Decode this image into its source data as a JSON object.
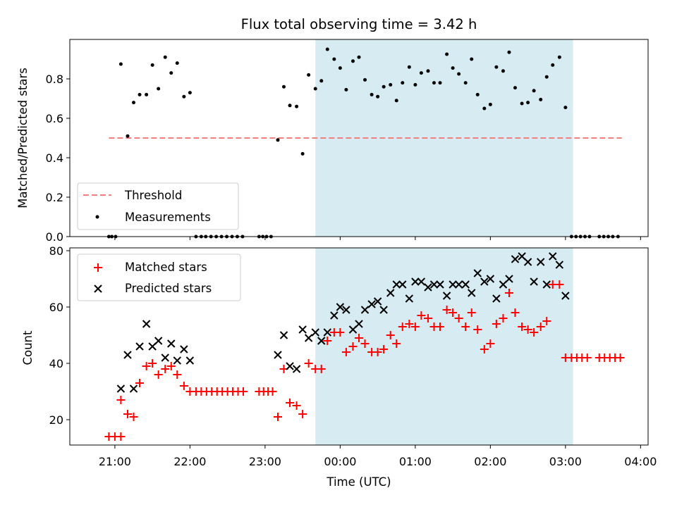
{
  "chart_data": {
    "type": "scatter",
    "title": "Flux total observing time = 3.42 h",
    "xlabel": "Time (UTC)",
    "x_unit": "hours after 00:00 UTC (negative = previous day)",
    "xlim": [
      -3.6,
      4.1
    ],
    "x_ticks": [
      {
        "value": -3,
        "label": "21:00"
      },
      {
        "value": -2,
        "label": "22:00"
      },
      {
        "value": -1,
        "label": "23:00"
      },
      {
        "value": 0,
        "label": "00:00"
      },
      {
        "value": 1,
        "label": "01:00"
      },
      {
        "value": 2,
        "label": "02:00"
      },
      {
        "value": 3,
        "label": "03:00"
      },
      {
        "value": 4,
        "label": "04:00"
      }
    ],
    "observing_window": {
      "start": -0.33,
      "end": 3.1,
      "color": "#add8e6"
    },
    "colors": {
      "threshold": "#f08080",
      "measurements": "#000000",
      "matched": "#ff0000",
      "predicted": "#000000",
      "window": "#add8e6"
    },
    "panels": [
      {
        "ylabel": "Matched/Predicted stars",
        "ylim": [
          0,
          1.0
        ],
        "yticks": [
          0.0,
          0.2,
          0.4,
          0.6,
          0.8
        ],
        "threshold": {
          "y": 0.5,
          "x_range": [
            -3.08,
            3.75
          ]
        },
        "legend": {
          "position": "lower left",
          "threshold_label": "Threshold",
          "measurements_label": "Measurements"
        },
        "measurements": [
          [
            -3.08,
            0
          ],
          [
            -3.04,
            0
          ],
          [
            -2.99,
            0
          ],
          [
            -2.92,
            0.875
          ],
          [
            -2.83,
            0.51
          ],
          [
            -2.75,
            0.68
          ],
          [
            -2.67,
            0.72
          ],
          [
            -2.58,
            0.72
          ],
          [
            -2.5,
            0.87
          ],
          [
            -2.42,
            0.75
          ],
          [
            -2.33,
            0.91
          ],
          [
            -2.25,
            0.83
          ],
          [
            -2.17,
            0.88
          ],
          [
            -2.08,
            0.71
          ],
          [
            -2.0,
            0.73
          ],
          [
            -1.92,
            0
          ],
          [
            -1.85,
            0
          ],
          [
            -1.79,
            0
          ],
          [
            -1.72,
            0
          ],
          [
            -1.65,
            0
          ],
          [
            -1.58,
            0
          ],
          [
            -1.51,
            0
          ],
          [
            -1.44,
            0
          ],
          [
            -1.37,
            0
          ],
          [
            -1.3,
            0
          ],
          [
            -1.08,
            0
          ],
          [
            -1.03,
            0
          ],
          [
            -0.98,
            0
          ],
          [
            -0.92,
            0
          ],
          [
            -0.83,
            0.49
          ],
          [
            -0.75,
            0.76
          ],
          [
            -0.67,
            0.665
          ],
          [
            -0.58,
            0.66
          ],
          [
            -0.5,
            0.42
          ],
          [
            -0.42,
            0.82
          ],
          [
            -0.33,
            0.75
          ],
          [
            -0.25,
            0.79
          ],
          [
            -0.17,
            0.95
          ],
          [
            -0.08,
            0.9
          ],
          [
            0.0,
            0.855
          ],
          [
            0.08,
            0.745
          ],
          [
            0.17,
            0.89
          ],
          [
            0.25,
            0.91
          ],
          [
            0.33,
            0.795
          ],
          [
            0.42,
            0.72
          ],
          [
            0.5,
            0.71
          ],
          [
            0.58,
            0.76
          ],
          [
            0.67,
            0.77
          ],
          [
            0.75,
            0.69
          ],
          [
            0.83,
            0.78
          ],
          [
            0.92,
            0.86
          ],
          [
            1.0,
            0.77
          ],
          [
            1.08,
            0.83
          ],
          [
            1.17,
            0.84
          ],
          [
            1.25,
            0.78
          ],
          [
            1.33,
            0.78
          ],
          [
            1.42,
            0.925
          ],
          [
            1.5,
            0.855
          ],
          [
            1.58,
            0.825
          ],
          [
            1.67,
            0.78
          ],
          [
            1.75,
            0.9
          ],
          [
            1.83,
            0.72
          ],
          [
            1.92,
            0.65
          ],
          [
            2.0,
            0.67
          ],
          [
            2.08,
            0.86
          ],
          [
            2.17,
            0.84
          ],
          [
            2.25,
            0.935
          ],
          [
            2.33,
            0.755
          ],
          [
            2.42,
            0.675
          ],
          [
            2.5,
            0.68
          ],
          [
            2.58,
            0.74
          ],
          [
            2.67,
            0.695
          ],
          [
            2.75,
            0.81
          ],
          [
            2.83,
            0.87
          ],
          [
            2.92,
            0.91
          ],
          [
            3.0,
            0.655
          ],
          [
            3.08,
            0
          ],
          [
            3.14,
            0
          ],
          [
            3.2,
            0
          ],
          [
            3.26,
            0
          ],
          [
            3.32,
            0
          ],
          [
            3.45,
            0
          ],
          [
            3.51,
            0
          ],
          [
            3.57,
            0
          ],
          [
            3.63,
            0
          ],
          [
            3.7,
            0
          ]
        ]
      },
      {
        "ylabel": "Count",
        "ylim": [
          11,
          81
        ],
        "yticks": [
          20,
          40,
          60,
          80
        ],
        "legend": {
          "position": "upper left",
          "matched_label": "Matched stars",
          "predicted_label": "Predicted stars"
        },
        "matched": [
          [
            -3.08,
            14
          ],
          [
            -3.0,
            14
          ],
          [
            -2.92,
            14
          ],
          [
            -2.92,
            27
          ],
          [
            -2.83,
            22
          ],
          [
            -2.75,
            21
          ],
          [
            -2.67,
            33
          ],
          [
            -2.58,
            39
          ],
          [
            -2.5,
            40
          ],
          [
            -2.42,
            36
          ],
          [
            -2.33,
            38
          ],
          [
            -2.25,
            39
          ],
          [
            -2.17,
            36
          ],
          [
            -2.08,
            32
          ],
          [
            -2.0,
            30
          ],
          [
            -1.92,
            30
          ],
          [
            -1.85,
            30
          ],
          [
            -1.78,
            30
          ],
          [
            -1.71,
            30
          ],
          [
            -1.64,
            30
          ],
          [
            -1.57,
            30
          ],
          [
            -1.5,
            30
          ],
          [
            -1.43,
            30
          ],
          [
            -1.36,
            30
          ],
          [
            -1.29,
            30
          ],
          [
            -1.08,
            30
          ],
          [
            -1.02,
            30
          ],
          [
            -0.96,
            30
          ],
          [
            -0.9,
            30
          ],
          [
            -0.83,
            21
          ],
          [
            -0.75,
            38
          ],
          [
            -0.67,
            26
          ],
          [
            -0.58,
            25
          ],
          [
            -0.5,
            22
          ],
          [
            -0.42,
            40
          ],
          [
            -0.33,
            38
          ],
          [
            -0.25,
            38
          ],
          [
            -0.17,
            48
          ],
          [
            -0.08,
            51
          ],
          [
            0.0,
            51
          ],
          [
            0.08,
            44
          ],
          [
            0.17,
            46
          ],
          [
            0.25,
            49
          ],
          [
            0.33,
            47
          ],
          [
            0.42,
            44
          ],
          [
            0.5,
            44
          ],
          [
            0.58,
            45
          ],
          [
            0.67,
            50
          ],
          [
            0.75,
            47
          ],
          [
            0.83,
            53
          ],
          [
            0.92,
            54
          ],
          [
            1.0,
            53
          ],
          [
            1.08,
            57
          ],
          [
            1.17,
            56
          ],
          [
            1.25,
            53
          ],
          [
            1.33,
            53
          ],
          [
            1.42,
            59
          ],
          [
            1.5,
            58
          ],
          [
            1.58,
            56
          ],
          [
            1.67,
            53
          ],
          [
            1.75,
            58
          ],
          [
            1.83,
            52
          ],
          [
            1.92,
            45
          ],
          [
            2.0,
            47
          ],
          [
            2.08,
            54
          ],
          [
            2.17,
            56
          ],
          [
            2.25,
            65
          ],
          [
            2.33,
            58
          ],
          [
            2.42,
            53
          ],
          [
            2.5,
            52
          ],
          [
            2.58,
            51
          ],
          [
            2.67,
            53
          ],
          [
            2.75,
            55
          ],
          [
            2.83,
            68
          ],
          [
            2.92,
            68
          ],
          [
            3.0,
            42
          ],
          [
            3.08,
            42
          ],
          [
            3.15,
            42
          ],
          [
            3.22,
            42
          ],
          [
            3.29,
            42
          ],
          [
            3.45,
            42
          ],
          [
            3.52,
            42
          ],
          [
            3.59,
            42
          ],
          [
            3.66,
            42
          ],
          [
            3.73,
            42
          ]
        ],
        "predicted": [
          [
            -2.92,
            31
          ],
          [
            -2.83,
            43
          ],
          [
            -2.75,
            31
          ],
          [
            -2.67,
            46
          ],
          [
            -2.58,
            54
          ],
          [
            -2.5,
            46
          ],
          [
            -2.42,
            48
          ],
          [
            -2.33,
            42
          ],
          [
            -2.25,
            47
          ],
          [
            -2.17,
            41
          ],
          [
            -2.08,
            45
          ],
          [
            -2.0,
            41
          ],
          [
            -0.83,
            43
          ],
          [
            -0.75,
            50
          ],
          [
            -0.67,
            39
          ],
          [
            -0.58,
            38
          ],
          [
            -0.5,
            52
          ],
          [
            -0.42,
            49
          ],
          [
            -0.33,
            51
          ],
          [
            -0.25,
            48
          ],
          [
            -0.17,
            51
          ],
          [
            -0.08,
            57
          ],
          [
            0.0,
            60
          ],
          [
            0.08,
            59
          ],
          [
            0.17,
            52
          ],
          [
            0.25,
            54
          ],
          [
            0.33,
            59
          ],
          [
            0.42,
            61
          ],
          [
            0.5,
            62
          ],
          [
            0.58,
            59
          ],
          [
            0.67,
            65
          ],
          [
            0.75,
            68
          ],
          [
            0.83,
            68
          ],
          [
            0.92,
            63
          ],
          [
            1.0,
            69
          ],
          [
            1.08,
            69
          ],
          [
            1.17,
            67
          ],
          [
            1.25,
            68
          ],
          [
            1.33,
            68
          ],
          [
            1.42,
            64
          ],
          [
            1.5,
            68
          ],
          [
            1.58,
            68
          ],
          [
            1.67,
            68
          ],
          [
            1.75,
            65
          ],
          [
            1.83,
            72
          ],
          [
            1.92,
            69
          ],
          [
            2.0,
            70
          ],
          [
            2.08,
            63
          ],
          [
            2.17,
            68
          ],
          [
            2.25,
            70
          ],
          [
            2.33,
            77
          ],
          [
            2.42,
            78
          ],
          [
            2.5,
            76
          ],
          [
            2.58,
            69
          ],
          [
            2.67,
            76
          ],
          [
            2.75,
            68
          ],
          [
            2.83,
            78
          ],
          [
            2.92,
            75
          ],
          [
            3.0,
            64
          ]
        ]
      }
    ]
  }
}
